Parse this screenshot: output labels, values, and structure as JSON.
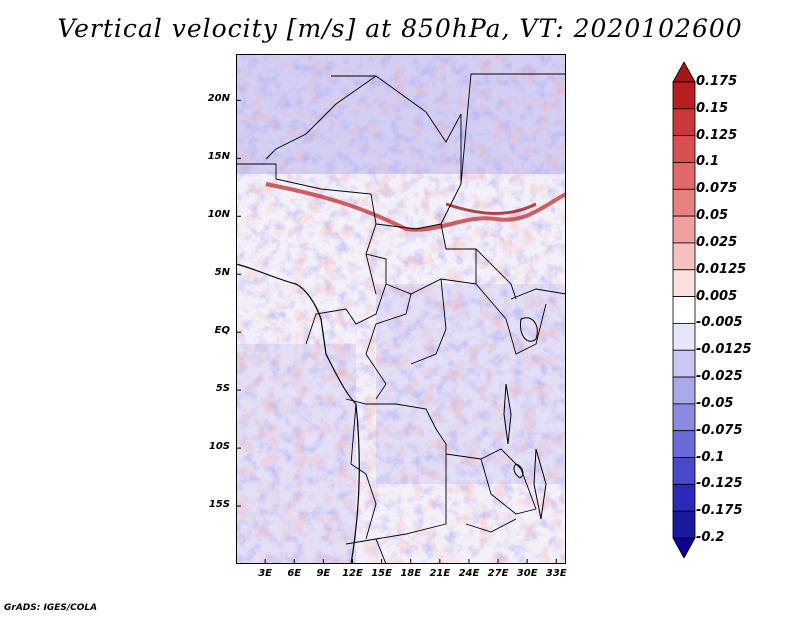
{
  "title": "Vertical velocity [m/s] at 850hPa, VT: 2020102600",
  "credit": "GrADS: IGES/COLA",
  "map": {
    "lon_range": [
      0,
      34
    ],
    "lat_range": [
      -20,
      24
    ],
    "lat_ticks": [
      {
        "label": "20N",
        "lat": 20
      },
      {
        "label": "15N",
        "lat": 15
      },
      {
        "label": "10N",
        "lat": 10
      },
      {
        "label": "5N",
        "lat": 5
      },
      {
        "label": "EQ",
        "lat": 0
      },
      {
        "label": "5S",
        "lat": -5
      },
      {
        "label": "10S",
        "lat": -10
      },
      {
        "label": "15S",
        "lat": -15
      }
    ],
    "lon_ticks": [
      {
        "label": "3E",
        "lon": 3
      },
      {
        "label": "6E",
        "lon": 6
      },
      {
        "label": "9E",
        "lon": 9
      },
      {
        "label": "12E",
        "lon": 12
      },
      {
        "label": "15E",
        "lon": 15
      },
      {
        "label": "18E",
        "lon": 18
      },
      {
        "label": "21E",
        "lon": 21
      },
      {
        "label": "24E",
        "lon": 24
      },
      {
        "label": "27E",
        "lon": 27
      },
      {
        "label": "30E",
        "lon": 30
      },
      {
        "label": "33E",
        "lon": 33
      }
    ]
  },
  "colorbar": {
    "levels": [
      "0.175",
      "0.15",
      "0.125",
      "0.1",
      "0.075",
      "0.05",
      "0.025",
      "0.0125",
      "0.005",
      "-0.005",
      "-0.0125",
      "-0.025",
      "-0.05",
      "-0.075",
      "-0.1",
      "-0.125",
      "-0.175",
      "-0.2"
    ],
    "colors": [
      "#a01818",
      "#b82020",
      "#cc3838",
      "#d85050",
      "#e06868",
      "#e88080",
      "#f0a0a0",
      "#f6c0c0",
      "#fbe0e0",
      "#ffffff",
      "#e6e6fa",
      "#c8c8f2",
      "#aaaaea",
      "#8a8ae0",
      "#6a6ad8",
      "#4848c8",
      "#2a2ab8",
      "#1a1aa0",
      "#100090"
    ]
  }
}
